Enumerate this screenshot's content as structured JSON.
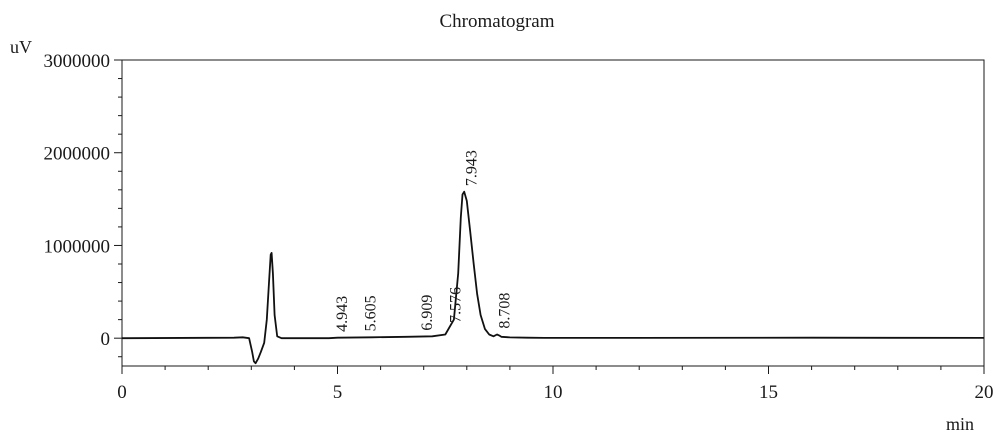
{
  "chart_data": {
    "type": "line",
    "title": "Chromatogram",
    "xlabel": "min",
    "ylabel": "uV",
    "xlim": [
      0,
      20
    ],
    "ylim": [
      -300000,
      3000000
    ],
    "x_ticks": [
      0,
      5,
      10,
      15,
      20
    ],
    "x_tick_labels": [
      "0",
      "5",
      "10",
      "15",
      "20"
    ],
    "y_ticks": [
      0,
      1000000,
      2000000,
      3000000
    ],
    "y_tick_labels": [
      "0",
      "1000000",
      "2000000",
      "3000000"
    ],
    "grid": false,
    "series": [
      {
        "x": [
          0.0,
          2.6,
          2.8,
          2.95,
          3.02,
          3.06,
          3.1,
          3.16,
          3.22,
          3.3,
          3.36,
          3.41,
          3.45,
          3.47,
          3.5,
          3.54,
          3.6,
          3.7,
          3.9,
          4.8,
          5.0,
          5.8,
          6.6,
          7.2,
          7.5,
          7.7,
          7.8,
          7.86,
          7.9,
          7.94,
          8.0,
          8.08,
          8.16,
          8.24,
          8.32,
          8.42,
          8.52,
          8.62,
          8.7,
          8.75,
          8.8,
          9.0,
          9.4,
          9.8,
          12.0,
          16.0,
          20.0
        ],
        "y": [
          0,
          5000,
          10000,
          0,
          -150000,
          -250000,
          -270000,
          -220000,
          -150000,
          -50000,
          200000,
          600000,
          900000,
          920000,
          700000,
          250000,
          20000,
          0,
          0,
          0,
          5000,
          10000,
          15000,
          20000,
          40000,
          200000,
          700000,
          1300000,
          1550000,
          1580000,
          1480000,
          1150000,
          800000,
          480000,
          250000,
          100000,
          40000,
          20000,
          40000,
          30000,
          15000,
          8000,
          5000,
          3000,
          3000,
          5000,
          3000
        ]
      }
    ],
    "peak_labels": [
      {
        "x": 4.943,
        "text": "4.943"
      },
      {
        "x": 5.605,
        "text": "5.605"
      },
      {
        "x": 6.909,
        "text": "6.909"
      },
      {
        "x": 7.576,
        "text": "7.576"
      },
      {
        "x": 7.943,
        "text": "7.943"
      },
      {
        "x": 8.708,
        "text": "8.708"
      }
    ]
  }
}
